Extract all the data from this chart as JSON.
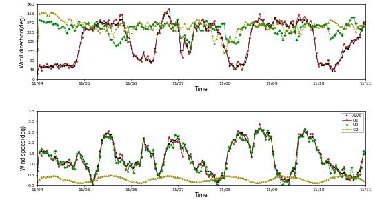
{
  "xtick_labels": [
    "11/04",
    "11/05",
    "11/06",
    "11/07",
    "11/08",
    "11/09",
    "11/10",
    "11/11"
  ],
  "upper_ylim": [
    0,
    360
  ],
  "upper_yticks": [
    0,
    45,
    90,
    135,
    180,
    225,
    270,
    315,
    360
  ],
  "upper_ylabel": "Wind direction(deg)",
  "lower_ylim": [
    0.0,
    3.5
  ],
  "lower_yticks": [
    0.0,
    0.5,
    1.0,
    1.5,
    2.0,
    2.5,
    3.0,
    3.5
  ],
  "lower_ylabel": "Wind speed(deg)",
  "xlabel": "Time",
  "legend_labels": [
    "AWS",
    "U5",
    "U9",
    "G2"
  ],
  "line_colors": [
    "black",
    "#8B1A1A",
    "green",
    "#8B8B00"
  ],
  "line_styles": [
    "-",
    "-",
    "--",
    "--"
  ],
  "markers": [
    "s",
    "o",
    "D",
    "^"
  ],
  "n_points": 168,
  "fig_width": 5.41,
  "fig_height": 2.96,
  "dpi": 100,
  "tick_fontsize": 4.5,
  "label_fontsize": 5.5,
  "legend_fontsize": 4.5,
  "linewidth": 0.5,
  "markersize": 1.8
}
